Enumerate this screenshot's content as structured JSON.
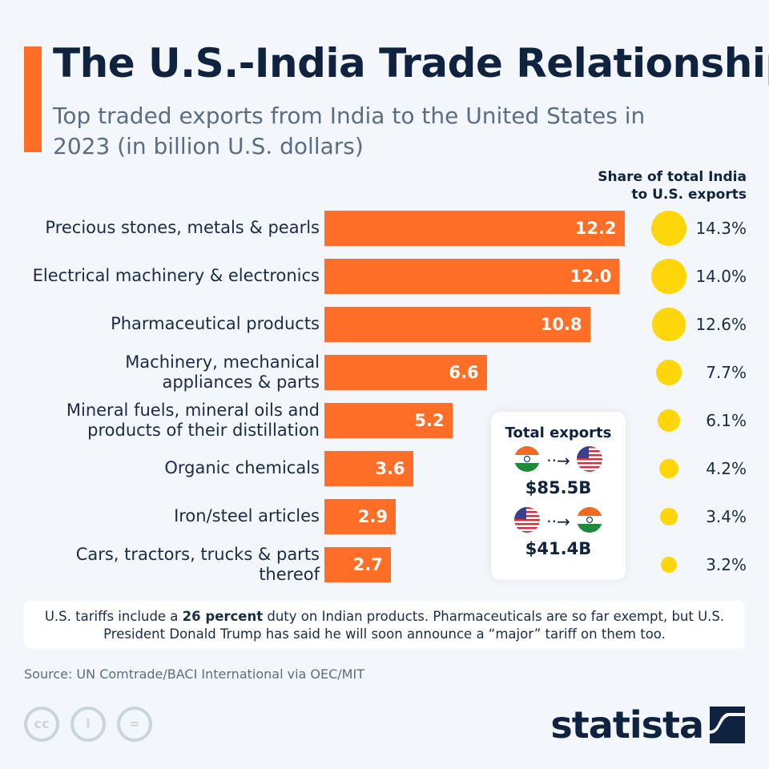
{
  "title": "The U.S.-India Trade Relationship",
  "subtitle": "Top traded exports from India to the United States in 2023 (in billion U.S. dollars)",
  "share_header": "Share of total India to U.S. exports",
  "colors": {
    "bar": "#ff6e26",
    "dot": "#ffd60a",
    "title": "#0f2340"
  },
  "chart_data": {
    "type": "bar",
    "orientation": "horizontal",
    "categories": [
      "Precious stones, metals & pearls",
      "Electrical machinery & electronics",
      "Pharmaceutical products",
      "Machinery, mechanical appliances & parts",
      "Mineral fuels, mineral oils and products of their distillation",
      "Organic chemicals",
      "Iron/steel articles",
      "Cars, tractors, trucks & parts thereof"
    ],
    "values": [
      12.2,
      12.0,
      10.8,
      6.6,
      5.2,
      3.6,
      2.9,
      2.7
    ],
    "value_labels": [
      "12.2",
      "12.0",
      "10.8",
      "6.6",
      "5.2",
      "3.6",
      "2.9",
      "2.7"
    ],
    "share_values": [
      14.3,
      14.0,
      12.6,
      7.7,
      6.1,
      4.2,
      3.4,
      3.2
    ],
    "share_labels": [
      "14.3%",
      "14.0%",
      "12.6%",
      "7.7%",
      "6.1%",
      "4.2%",
      "3.4%",
      "3.2%"
    ]
  },
  "total_exports": {
    "title": "Total exports",
    "india_to_us": "$85.5B",
    "us_to_india": "$41.4B"
  },
  "note": {
    "pre": "U.S. tariffs include a ",
    "bold": "26 percent",
    "post": " duty on Indian products. Pharmaceuticals are so far exempt, but U.S. President Donald Trump has said he will soon announce a “major” tariff on them too."
  },
  "source": "Source: UN Comtrade/BACI International via OEC/MIT",
  "license_icons": [
    "cc-icon",
    "attribution-icon",
    "no-derivatives-icon"
  ],
  "logo": "statista"
}
